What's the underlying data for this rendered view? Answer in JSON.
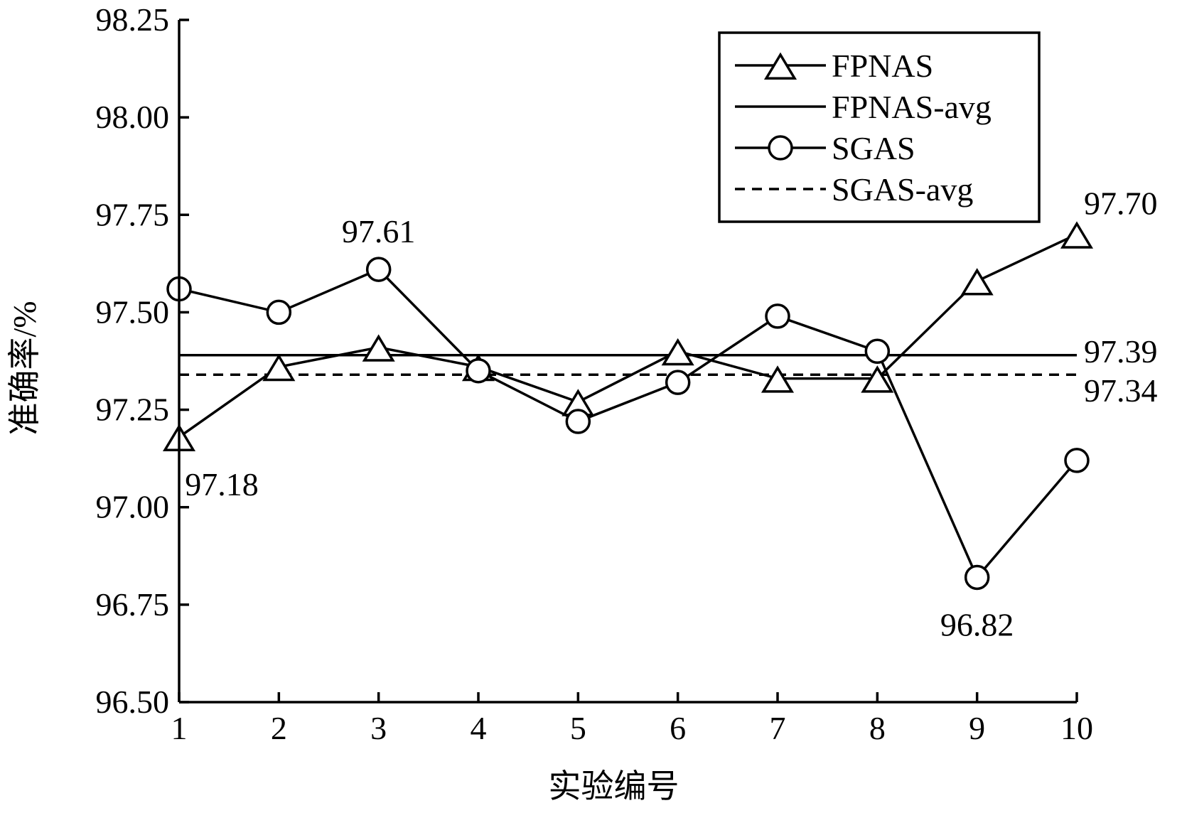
{
  "chart_data": {
    "type": "line",
    "xlabel": "实验编号",
    "ylabel": "准确率/%",
    "xlim": [
      1,
      10
    ],
    "ylim": [
      96.5,
      98.25
    ],
    "x_ticks": [
      "1",
      "2",
      "3",
      "4",
      "5",
      "6",
      "7",
      "8",
      "9",
      "10"
    ],
    "y_ticks": [
      "96.50",
      "96.75",
      "97.00",
      "97.25",
      "97.50",
      "97.75",
      "98.00",
      "98.25"
    ],
    "x": [
      1,
      2,
      3,
      4,
      5,
      6,
      7,
      8,
      9,
      10
    ],
    "series": [
      {
        "name": "FPNAS",
        "marker": "triangle",
        "values": [
          97.18,
          97.36,
          97.41,
          97.36,
          97.27,
          97.4,
          97.33,
          97.33,
          97.58,
          97.7
        ]
      },
      {
        "name": "FPNAS-avg",
        "line_style": "solid",
        "value": 97.39
      },
      {
        "name": "SGAS",
        "marker": "circle",
        "values": [
          97.56,
          97.5,
          97.61,
          97.35,
          97.22,
          97.32,
          97.49,
          97.4,
          96.82,
          97.12
        ]
      },
      {
        "name": "SGAS-avg",
        "line_style": "dashed",
        "value": 97.34
      }
    ],
    "annotations": [
      {
        "text": "97.61",
        "series": "SGAS",
        "x": 3,
        "y": 97.61,
        "position": "above"
      },
      {
        "text": "97.18",
        "series": "FPNAS",
        "x": 1,
        "y": 97.18,
        "position": "below-right"
      },
      {
        "text": "96.82",
        "series": "SGAS",
        "x": 9,
        "y": 96.82,
        "position": "below"
      },
      {
        "text": "97.70",
        "series": "FPNAS",
        "x": 10,
        "y": 97.7,
        "position": "above-right"
      },
      {
        "text": "97.39",
        "series": "FPNAS-avg",
        "x": 10,
        "y": 97.39,
        "position": "right"
      },
      {
        "text": "97.34",
        "series": "SGAS-avg",
        "x": 10,
        "y": 97.34,
        "position": "right"
      }
    ],
    "legend": {
      "position": "top-right",
      "entries": [
        "FPNAS",
        "FPNAS-avg",
        "SGAS",
        "SGAS-avg"
      ]
    },
    "grid": false,
    "colors": {
      "line": "#000000",
      "background": "#ffffff"
    }
  }
}
